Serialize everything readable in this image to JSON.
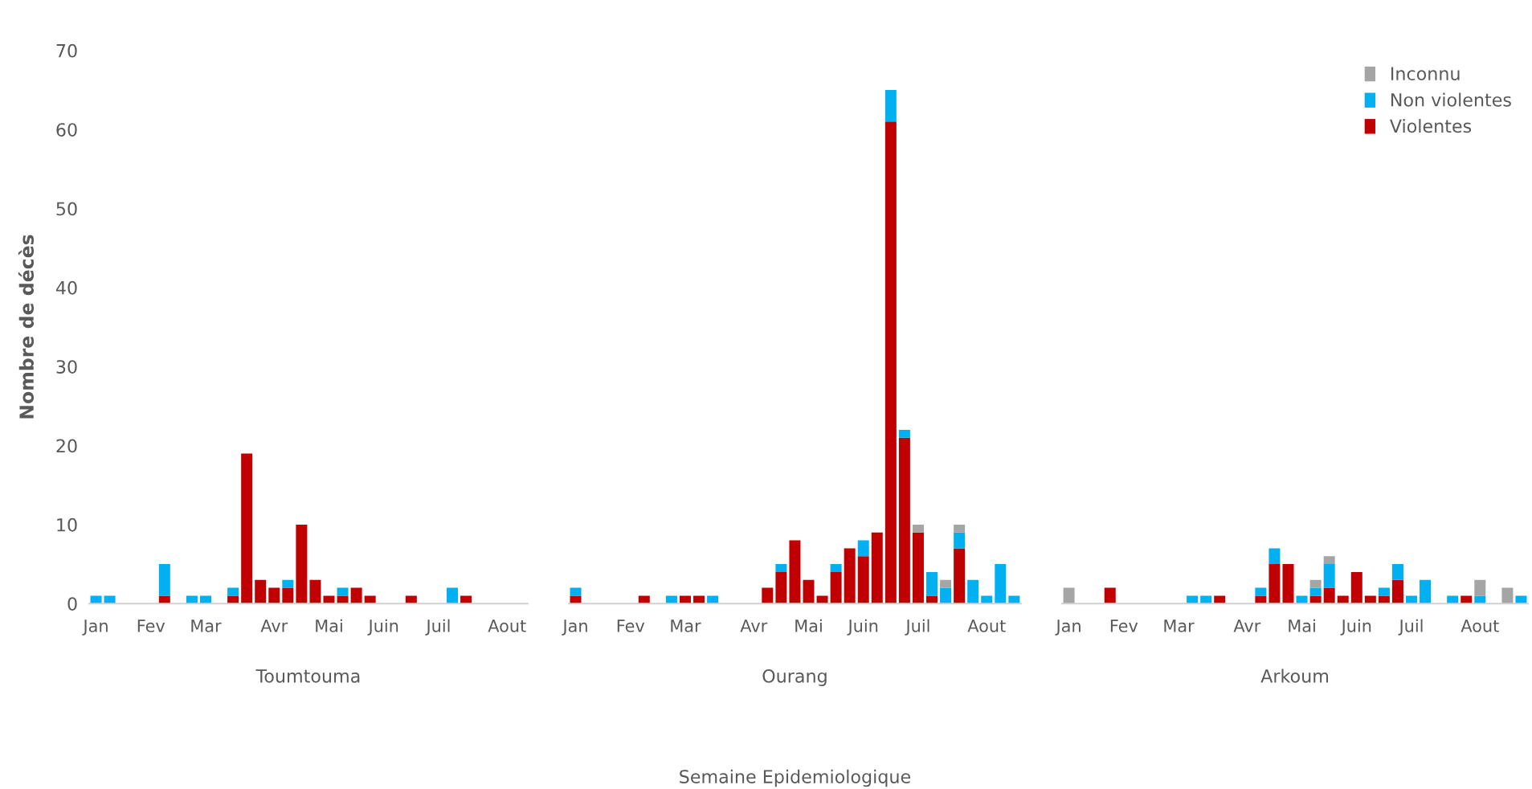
{
  "chart_data": [
    {
      "type": "bar",
      "stacked": true,
      "ylabel": "Nombre de décès",
      "xlabel": "Toumtouma",
      "ylim": [
        0,
        70
      ],
      "yticks": [
        0,
        10,
        20,
        30,
        40,
        50,
        60,
        70
      ],
      "grid": false,
      "legend": "top right",
      "categories": [
        "Jan",
        null,
        null,
        null,
        "Fev",
        null,
        null,
        null,
        "Mar",
        null,
        null,
        null,
        null,
        "Avr",
        null,
        null,
        null,
        "Mai",
        null,
        null,
        null,
        "Juin",
        null,
        null,
        null,
        "Juil",
        null,
        null,
        null,
        null,
        "Aout",
        null
      ],
      "series": [
        {
          "name": "Violentes",
          "color": "#c00000",
          "values": [
            null,
            null,
            null,
            null,
            null,
            1,
            null,
            null,
            null,
            null,
            1,
            19,
            3,
            2,
            2,
            10,
            3,
            1,
            1,
            2,
            1,
            null,
            null,
            1,
            null,
            null,
            null,
            1,
            null,
            null,
            null,
            null
          ]
        },
        {
          "name": "Non violentes",
          "color": "#00b0f0",
          "values": [
            1,
            1,
            null,
            null,
            null,
            4,
            null,
            1,
            1,
            null,
            1,
            null,
            null,
            null,
            1,
            null,
            null,
            null,
            1,
            null,
            null,
            null,
            null,
            null,
            null,
            null,
            2,
            null,
            null,
            null,
            null,
            null
          ]
        }
      ]
    },
    {
      "type": "bar",
      "stacked": true,
      "xlabel": "Ourang",
      "ylim": [
        0,
        70
      ],
      "yticks": [
        0,
        10,
        20,
        30,
        40,
        50,
        60,
        70
      ],
      "grid": false,
      "legend": "top right",
      "tick_labels": "x",
      "annotations": [
        "Semaine Epidemiologique"
      ],
      "categories": [
        "Jan",
        null,
        null,
        null,
        "Fev",
        null,
        null,
        null,
        "Mar",
        null,
        null,
        null,
        null,
        "Avr",
        null,
        null,
        null,
        "Mai",
        null,
        null,
        null,
        "Juin",
        null,
        null,
        null,
        "Juil",
        null,
        null,
        null,
        null,
        "Aout",
        null,
        null
      ],
      "series": [
        {
          "name": "Violentes",
          "color": "#c00000",
          "values": [
            1,
            null,
            null,
            null,
            null,
            1,
            null,
            null,
            1,
            1,
            null,
            null,
            null,
            null,
            2,
            4,
            8,
            3,
            1,
            4,
            7,
            6,
            9,
            61,
            21,
            9,
            1,
            null,
            7,
            null,
            null,
            null,
            null
          ]
        },
        {
          "name": "Non violentes",
          "color": "#00b0f0",
          "values": [
            1,
            null,
            null,
            null,
            null,
            null,
            null,
            1,
            null,
            null,
            1,
            null,
            null,
            null,
            null,
            1,
            null,
            null,
            null,
            1,
            null,
            2,
            null,
            4,
            1,
            null,
            3,
            2,
            2,
            3,
            1,
            5,
            1
          ]
        },
        {
          "name": "Inconnu",
          "color": "#a5a5a5",
          "values": [
            null,
            null,
            null,
            null,
            null,
            null,
            null,
            null,
            null,
            null,
            null,
            null,
            null,
            null,
            null,
            null,
            null,
            null,
            null,
            null,
            null,
            null,
            null,
            null,
            null,
            1,
            null,
            1,
            1,
            null,
            null,
            null,
            null
          ]
        }
      ]
    },
    {
      "type": "bar",
      "stacked": true,
      "xlabel": "Arkoum",
      "ylim": [
        0,
        70
      ],
      "yticks": [
        0,
        10,
        20,
        30,
        40,
        50,
        60,
        70
      ],
      "grid": false,
      "legend": "top right",
      "tick_labels": "x",
      "categories": [
        "Jan",
        null,
        null,
        null,
        "Fev",
        null,
        null,
        null,
        "Mar",
        null,
        null,
        null,
        null,
        "Avr",
        null,
        null,
        null,
        "Mai",
        null,
        null,
        null,
        "Juin",
        null,
        null,
        null,
        "Juil",
        null,
        null,
        null,
        null,
        "Aout",
        null,
        null,
        null
      ],
      "series": [
        {
          "name": "Violentes",
          "color": "#c00000",
          "values": [
            null,
            null,
            null,
            2,
            null,
            null,
            null,
            null,
            null,
            null,
            null,
            1,
            null,
            null,
            1,
            5,
            5,
            null,
            1,
            2,
            1,
            4,
            1,
            1,
            3,
            null,
            null,
            null,
            null,
            1,
            null,
            null,
            null,
            null
          ]
        },
        {
          "name": "Non violentes",
          "color": "#00b0f0",
          "values": [
            null,
            null,
            null,
            null,
            null,
            null,
            null,
            null,
            null,
            1,
            1,
            null,
            null,
            null,
            1,
            2,
            null,
            1,
            1,
            3,
            null,
            null,
            null,
            1,
            2,
            1,
            3,
            null,
            1,
            null,
            1,
            null,
            null,
            1
          ]
        },
        {
          "name": "Inconnu",
          "color": "#a5a5a5",
          "values": [
            2,
            null,
            null,
            null,
            null,
            null,
            null,
            null,
            null,
            null,
            null,
            null,
            null,
            null,
            null,
            null,
            null,
            null,
            1,
            1,
            null,
            null,
            null,
            null,
            null,
            null,
            null,
            null,
            null,
            null,
            2,
            null,
            2,
            null
          ]
        }
      ]
    }
  ]
}
